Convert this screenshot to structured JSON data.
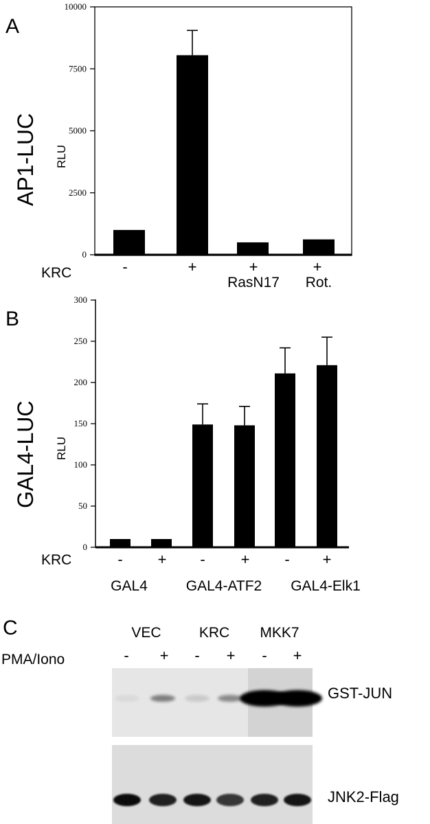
{
  "panels": {
    "a": {
      "letter": "A",
      "side_title": "AP1-LUC",
      "row_label": "KRC",
      "signs": [
        "-",
        "+",
        "+",
        "+"
      ],
      "sublabels": [
        "RasN17",
        "Rot."
      ]
    },
    "b": {
      "letter": "B",
      "side_title": "GAL4-LUC",
      "row_label": "KRC",
      "signs": [
        "-",
        "+",
        "-",
        "+",
        "-",
        "+"
      ],
      "groups": [
        "GAL4",
        "GAL4-ATF2",
        "GAL4-Elk1"
      ]
    },
    "c": {
      "letter": "C",
      "row_label": "PMA/Iono",
      "groups": [
        "VEC",
        "KRC",
        "MKK7"
      ],
      "signs": [
        "-",
        "+",
        "-",
        "+",
        "-",
        "+"
      ],
      "blots": [
        "GST-JUN",
        "JNK2-Flag"
      ],
      "band_intensity_jun": [
        0.05,
        0.45,
        0.12,
        0.4,
        1.0,
        1.0
      ],
      "band_intensity_jnk2": [
        0.95,
        0.85,
        0.9,
        0.75,
        0.85,
        0.9
      ]
    }
  },
  "chart_data": [
    {
      "type": "bar",
      "title": "",
      "xlabel": "",
      "ylabel": "RLU",
      "ylim": [
        0,
        10000
      ],
      "yticks": [
        0,
        2500,
        5000,
        7500,
        10000
      ],
      "categories": [
        "-",
        "+",
        "+ RasN17",
        "+ Rot."
      ],
      "values": [
        1000,
        8050,
        500,
        620
      ],
      "error": [
        null,
        1000,
        null,
        null
      ],
      "color": "#000000",
      "grid": false
    },
    {
      "type": "bar",
      "title": "",
      "xlabel": "",
      "ylabel": "RLU",
      "ylim": [
        0,
        300
      ],
      "yticks": [
        0,
        50,
        100,
        150,
        200,
        250,
        300
      ],
      "categories": [
        "GAL4 -",
        "GAL4 +",
        "GAL4-ATF2 -",
        "GAL4-ATF2 +",
        "GAL4-Elk1 -",
        "GAL4-Elk1 +"
      ],
      "values": [
        10,
        10,
        149,
        148,
        211,
        221
      ],
      "error": [
        null,
        null,
        25,
        23,
        31,
        34
      ],
      "color": "#000000",
      "grid": false
    }
  ]
}
